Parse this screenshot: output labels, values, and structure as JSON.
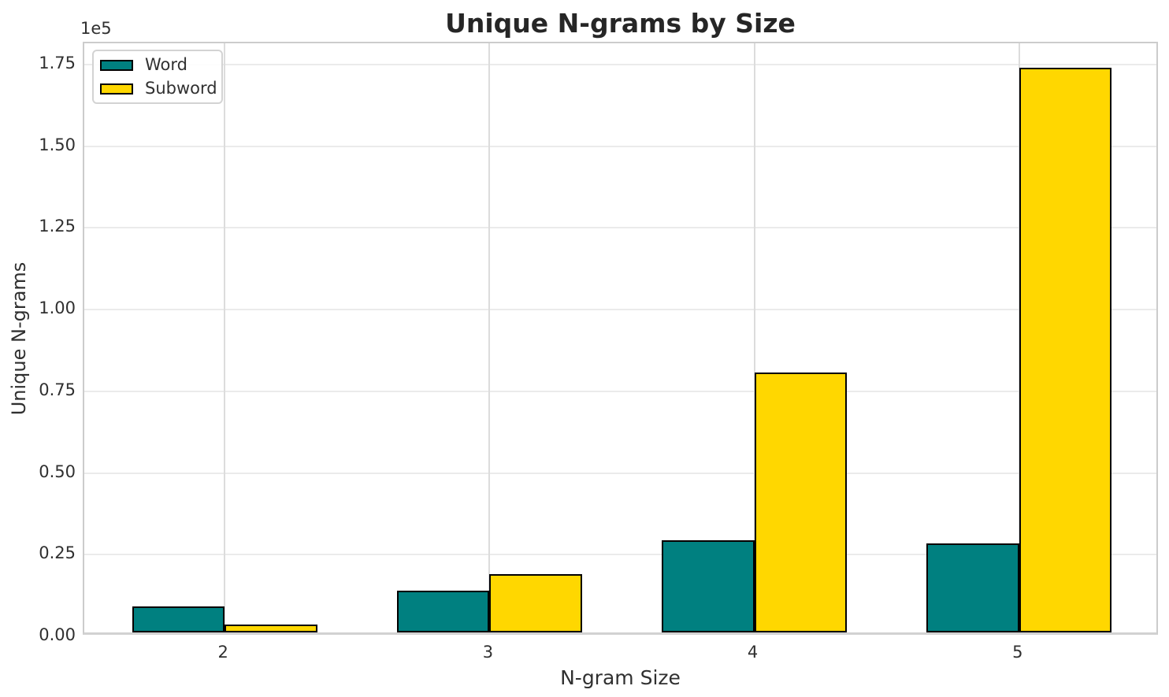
{
  "figure": {
    "background": "#ffffff"
  },
  "chart_data": {
    "type": "bar",
    "title": "Unique N-grams by Size",
    "xlabel": "N-gram Size",
    "ylabel": "Unique N-grams",
    "offset_text": "1e5",
    "categories": [
      "2",
      "3",
      "4",
      "5"
    ],
    "series": [
      {
        "name": "Word",
        "color": "#008080",
        "values": [
          8000,
          12700,
          28100,
          27300
        ]
      },
      {
        "name": "Subword",
        "color": "#FFD700",
        "values": [
          2400,
          17900,
          79600,
          172900
        ]
      }
    ],
    "bar_edge_color": "#000000",
    "ylim": [
      0,
      181500
    ],
    "yticks": [
      0,
      25000,
      50000,
      75000,
      100000,
      125000,
      150000,
      175000
    ],
    "ytick_labels": [
      "0.00",
      "0.25",
      "0.50",
      "0.75",
      "1.00",
      "1.25",
      "1.50",
      "1.75"
    ],
    "grid": true,
    "legend_position": "upper left"
  }
}
